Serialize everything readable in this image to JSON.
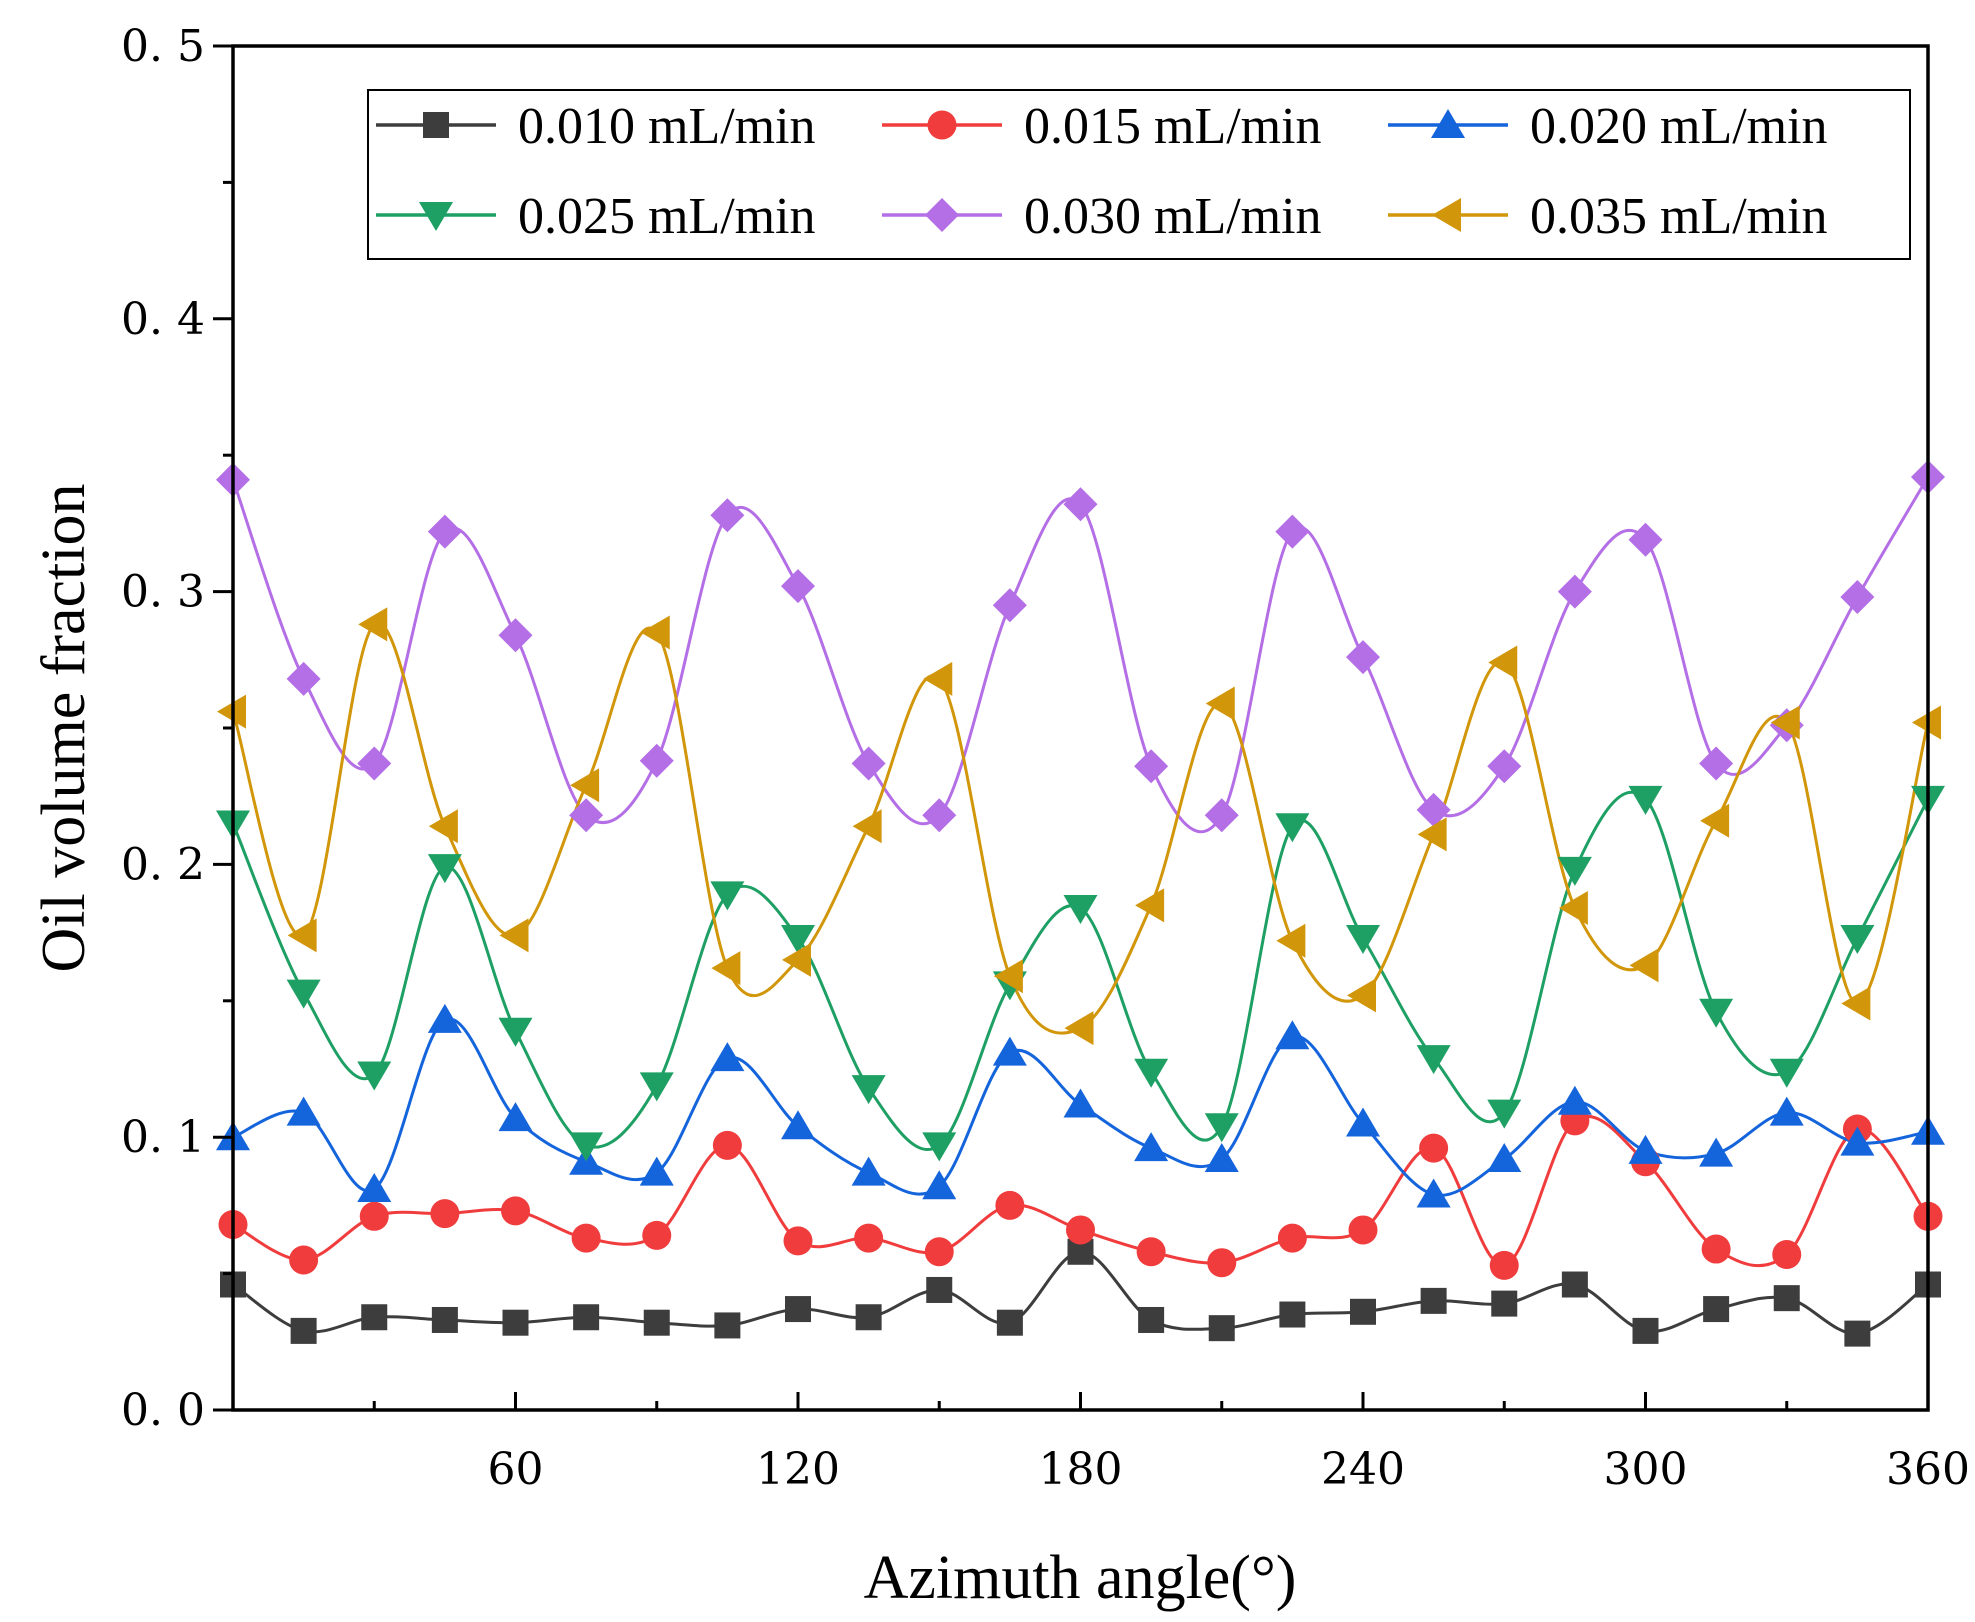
{
  "chart_data": {
    "type": "line",
    "title": "",
    "xlabel": "Azimuth angle(°)",
    "ylabel": "Oil volume fraction",
    "xlim": [
      0,
      360
    ],
    "ylim": [
      0,
      0.5
    ],
    "x_ticks": [
      60,
      120,
      180,
      240,
      300,
      360
    ],
    "x_tick_labels": [
      "60",
      "120",
      "180",
      "240",
      "300",
      "360"
    ],
    "y_ticks": [
      0,
      0.1,
      0.2,
      0.3,
      0.4,
      0.5
    ],
    "y_tick_labels": [
      "0. 0",
      "0. 1",
      "0. 2",
      "0. 3",
      "0. 4",
      "0. 5"
    ],
    "grid": false,
    "legend_position": "top-right",
    "x": [
      0,
      15,
      30,
      45,
      60,
      75,
      90,
      105,
      120,
      135,
      150,
      165,
      180,
      195,
      210,
      225,
      240,
      255,
      270,
      285,
      300,
      315,
      330,
      345,
      360
    ],
    "series": [
      {
        "name": "0.010 mL/min",
        "color": "#3d3d3d",
        "marker": "square",
        "values": [
          0.046,
          0.029,
          0.034,
          0.033,
          0.032,
          0.034,
          0.032,
          0.031,
          0.037,
          0.034,
          0.044,
          0.032,
          0.058,
          0.033,
          0.03,
          0.035,
          0.036,
          0.04,
          0.039,
          0.046,
          0.029,
          0.037,
          0.041,
          0.028,
          0.046
        ]
      },
      {
        "name": "0.015 mL/min",
        "color": "#f03c3c",
        "marker": "circle",
        "values": [
          0.068,
          0.055,
          0.071,
          0.072,
          0.073,
          0.063,
          0.064,
          0.097,
          0.062,
          0.063,
          0.058,
          0.075,
          0.066,
          0.058,
          0.054,
          0.063,
          0.066,
          0.096,
          0.053,
          0.106,
          0.091,
          0.059,
          0.057,
          0.103,
          0.071
        ]
      },
      {
        "name": "0.020 mL/min",
        "color": "#1464dc",
        "marker": "triangle-up",
        "values": [
          0.1,
          0.109,
          0.081,
          0.143,
          0.107,
          0.091,
          0.087,
          0.129,
          0.104,
          0.087,
          0.082,
          0.131,
          0.112,
          0.096,
          0.092,
          0.137,
          0.105,
          0.079,
          0.092,
          0.113,
          0.095,
          0.094,
          0.109,
          0.098,
          0.102
        ]
      },
      {
        "name": "0.025 mL/min",
        "color": "#1ea064",
        "marker": "triangle-down",
        "values": [
          0.215,
          0.153,
          0.123,
          0.199,
          0.139,
          0.097,
          0.119,
          0.189,
          0.173,
          0.118,
          0.097,
          0.156,
          0.184,
          0.124,
          0.104,
          0.214,
          0.173,
          0.129,
          0.109,
          0.198,
          0.224,
          0.146,
          0.124,
          0.173,
          0.224
        ]
      },
      {
        "name": "0.030 mL/min",
        "color": "#b46ee6",
        "marker": "diamond",
        "values": [
          0.341,
          0.268,
          0.237,
          0.322,
          0.284,
          0.218,
          0.238,
          0.328,
          0.302,
          0.237,
          0.218,
          0.295,
          0.332,
          0.236,
          0.218,
          0.322,
          0.276,
          0.22,
          0.236,
          0.3,
          0.319,
          0.237,
          0.251,
          0.298,
          0.342
        ]
      },
      {
        "name": "0.035 mL/min",
        "color": "#d2960a",
        "marker": "triangle-left",
        "values": [
          0.256,
          0.174,
          0.288,
          0.214,
          0.174,
          0.229,
          0.285,
          0.162,
          0.165,
          0.214,
          0.268,
          0.159,
          0.14,
          0.185,
          0.259,
          0.172,
          0.152,
          0.211,
          0.274,
          0.184,
          0.163,
          0.216,
          0.252,
          0.149,
          0.252
        ]
      }
    ]
  }
}
